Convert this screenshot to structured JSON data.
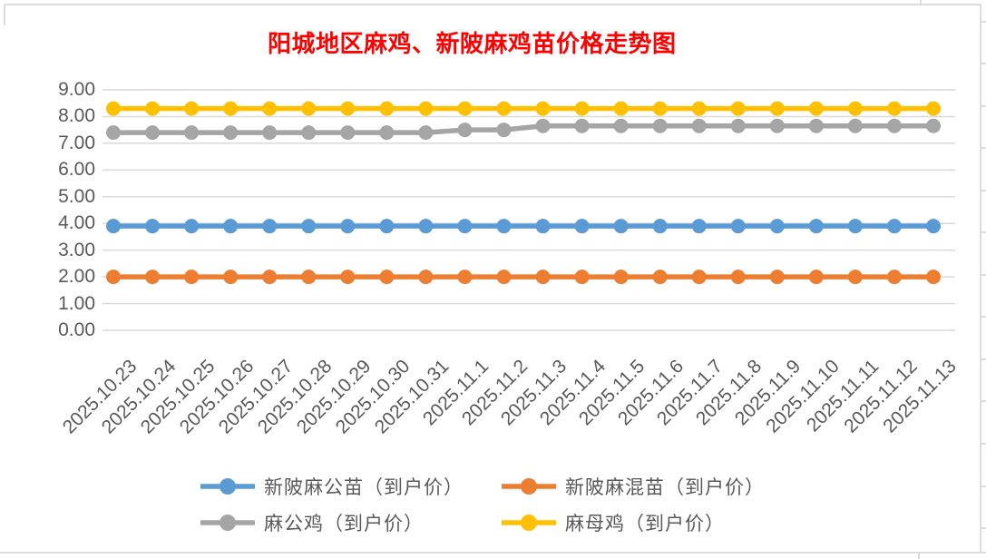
{
  "chart_data": {
    "type": "line",
    "title": "阳城地区麻鸡、新陂麻鸡苗价格走势图",
    "title_color": "#ff0000",
    "axis_label_color": "#595959",
    "gridline_color": "#d9d9d9",
    "grid": true,
    "legend_position": "bottom",
    "ylim": [
      0,
      9
    ],
    "y_ticks": [
      "9.00",
      "8.00",
      "7.00",
      "6.00",
      "5.00",
      "4.00",
      "3.00",
      "2.00",
      "1.00",
      "0.00"
    ],
    "categories": [
      "2025.10.23",
      "2025.10.24",
      "2025.10.25",
      "2025.10.26",
      "2025.10.27",
      "2025.10.28",
      "2025.10.29",
      "2025.10.30",
      "2025.10.31",
      "2025.11.1",
      "2025.11.2",
      "2025.11.3",
      "2025.11.4",
      "2025.11.5",
      "2025.11.6",
      "2025.11.7",
      "2025.11.8",
      "2025.11.9",
      "2025.11.10",
      "2025.11.11",
      "2025.11.12",
      "2025.11.13"
    ],
    "series": [
      {
        "name": "新陂麻公苗（到户价）",
        "color": "#5b9bd5",
        "values": [
          3.9,
          3.9,
          3.9,
          3.9,
          3.9,
          3.9,
          3.9,
          3.9,
          3.9,
          3.9,
          3.9,
          3.9,
          3.9,
          3.9,
          3.9,
          3.9,
          3.9,
          3.9,
          3.9,
          3.9,
          3.9,
          3.9
        ]
      },
      {
        "name": "新陂麻混苗（到户价）",
        "color": "#ed7d31",
        "values": [
          2.0,
          2.0,
          2.0,
          2.0,
          2.0,
          2.0,
          2.0,
          2.0,
          2.0,
          2.0,
          2.0,
          2.0,
          2.0,
          2.0,
          2.0,
          2.0,
          2.0,
          2.0,
          2.0,
          2.0,
          2.0,
          2.0
        ]
      },
      {
        "name": "麻公鸡（到户价）",
        "color": "#a5a5a5",
        "values": [
          7.4,
          7.4,
          7.4,
          7.4,
          7.4,
          7.4,
          7.4,
          7.4,
          7.4,
          7.5,
          7.5,
          7.65,
          7.65,
          7.65,
          7.65,
          7.65,
          7.65,
          7.65,
          7.65,
          7.65,
          7.65,
          7.65
        ]
      },
      {
        "name": "麻母鸡（到户价）",
        "color": "#ffc000",
        "values": [
          8.3,
          8.3,
          8.3,
          8.3,
          8.3,
          8.3,
          8.3,
          8.3,
          8.3,
          8.3,
          8.3,
          8.3,
          8.3,
          8.3,
          8.3,
          8.3,
          8.3,
          8.3,
          8.3,
          8.3,
          8.3,
          8.3
        ]
      }
    ]
  }
}
